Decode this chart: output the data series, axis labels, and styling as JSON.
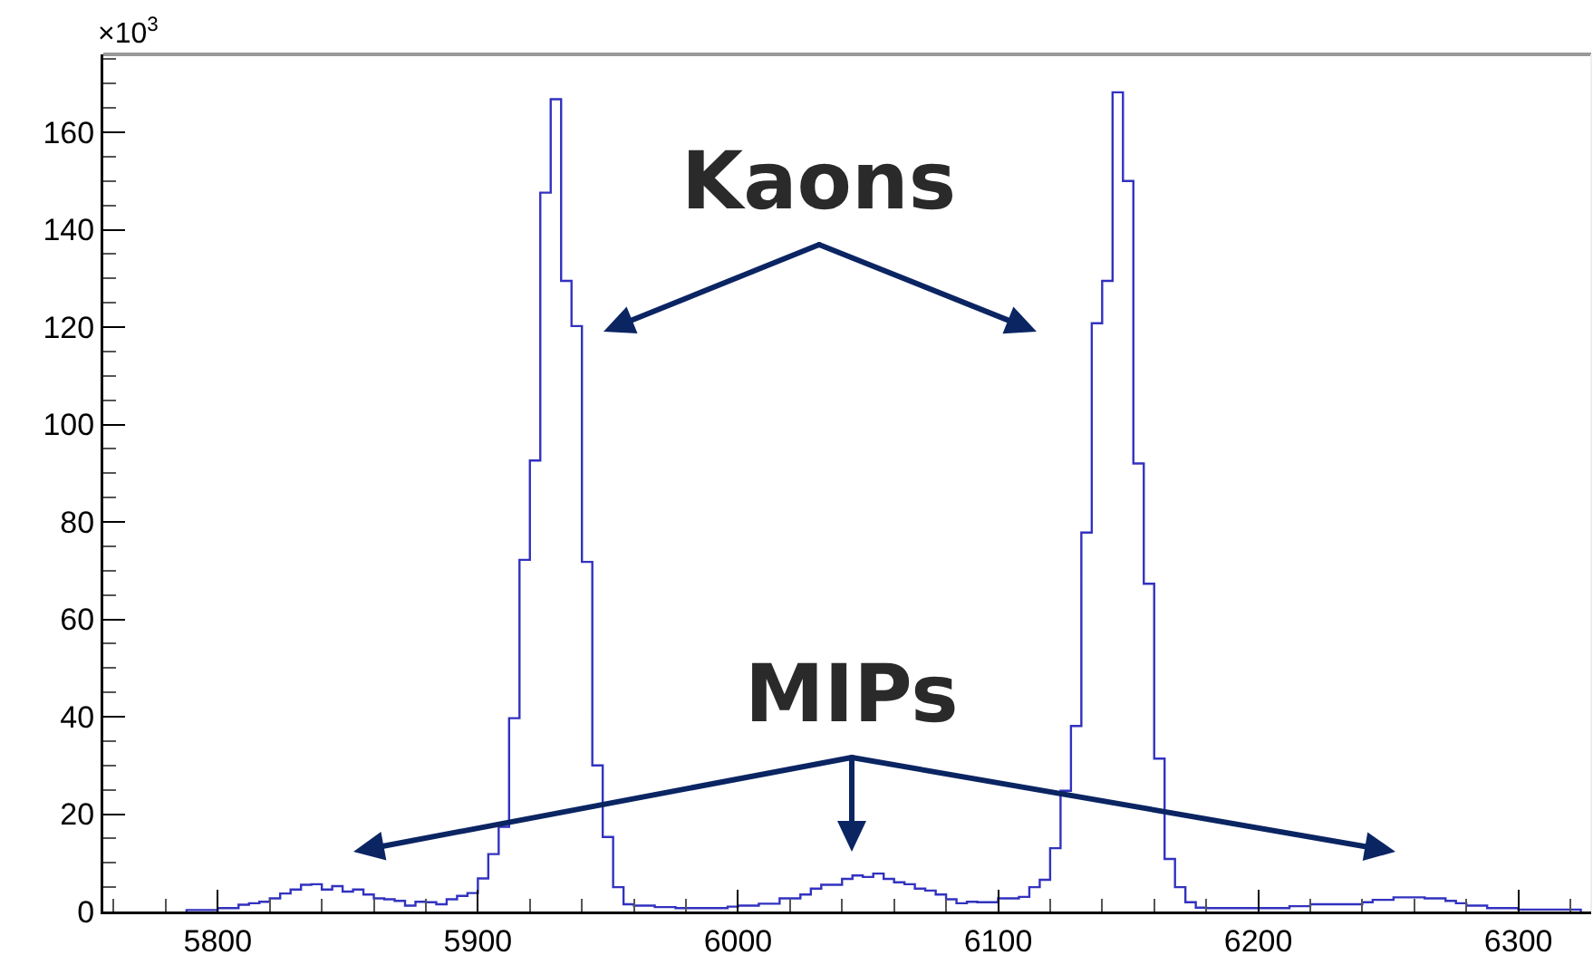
{
  "chart_data": {
    "type": "histogram",
    "color": "#3232c0",
    "bins": [
      5788,
      5792,
      5796,
      5800,
      5804,
      5808,
      5812,
      5816,
      5820,
      5824,
      5828,
      5832,
      5836,
      5840,
      5844,
      5848,
      5852,
      5856,
      5860,
      5864,
      5868,
      5872,
      5876,
      5880,
      5884,
      5888,
      5892,
      5896,
      5900,
      5904,
      5908,
      5912,
      5916,
      5920,
      5924,
      5928,
      5932,
      5936,
      5940,
      5944,
      5948,
      5952,
      5956,
      5960,
      5964,
      5968,
      5972,
      5976,
      5980,
      5984,
      5988,
      5992,
      5996,
      6000,
      6004,
      6008,
      6012,
      6016,
      6020,
      6024,
      6028,
      6032,
      6036,
      6040,
      6044,
      6048,
      6052,
      6056,
      6060,
      6064,
      6068,
      6072,
      6076,
      6080,
      6084,
      6088,
      6092,
      6096,
      6100,
      6104,
      6108,
      6112,
      6116,
      6120,
      6124,
      6128,
      6132,
      6136,
      6140,
      6144,
      6148,
      6152,
      6156,
      6160,
      6164,
      6168,
      6172,
      6176,
      6180,
      6184,
      6188,
      6192,
      6196,
      6200,
      6204,
      6208,
      6212,
      6216,
      6220,
      6224,
      6228,
      6232,
      6236,
      6240,
      6244,
      6248,
      6252,
      6256,
      6260,
      6264,
      6268,
      6272,
      6276,
      6280,
      6284,
      6288,
      6292,
      6296,
      6300,
      6304,
      6308,
      6312,
      6316,
      6320,
      6324
    ],
    "values": [
      0.3,
      0.3,
      0.3,
      0.7,
      0.7,
      1.4,
      1.7,
      2.0,
      2.7,
      3.7,
      4.5,
      5.5,
      5.6,
      4.5,
      5.2,
      4.1,
      4.5,
      3.5,
      2.7,
      2.5,
      2.2,
      1.2,
      2.0,
      1.9,
      1.5,
      2.5,
      3.2,
      3.8,
      6.8,
      11.8,
      17.4,
      39.7,
      72.2,
      92.6,
      147.6,
      166.8,
      129.5,
      120.2,
      71.8,
      30.0,
      15.3,
      5.0,
      1.5,
      1.2,
      1.2,
      0.9,
      0.9,
      0.7,
      0.7,
      0.7,
      0.7,
      0.7,
      1.0,
      1.2,
      1.2,
      1.6,
      1.6,
      2.7,
      2.7,
      3.5,
      4.7,
      5.5,
      5.5,
      6.7,
      7.4,
      7.1,
      7.8,
      6.7,
      6.0,
      5.6,
      4.7,
      4.3,
      3.5,
      2.5,
      1.7,
      2.0,
      1.9,
      1.9,
      2.7,
      2.7,
      3.0,
      5.0,
      6.5,
      13.0,
      24.8,
      38.1,
      77.8,
      120.8,
      129.5,
      168.2,
      150.0,
      92.0,
      67.3,
      31.4,
      10.8,
      5.0,
      1.9,
      0.8,
      0.7,
      0.7,
      0.7,
      0.7,
      0.7,
      0.7,
      0.7,
      0.7,
      1.1,
      1.1,
      1.5,
      1.5,
      1.5,
      1.5,
      1.5,
      1.9,
      2.4,
      2.4,
      2.9,
      2.9,
      2.9,
      2.7,
      2.7,
      2.2,
      1.7,
      1.2,
      1.2,
      0.7,
      0.7,
      0.7,
      0.4,
      0.4,
      0.4,
      0.4,
      0.4,
      0.4
    ],
    "xlim": [
      5756,
      6328
    ],
    "ylim": [
      0,
      176
    ],
    "xticks": [
      {
        "value": 5760,
        "label": null
      },
      {
        "value": 5780,
        "label": null
      },
      5800,
      {
        "value": 5820,
        "label": null
      },
      {
        "value": 5840,
        "label": null
      },
      {
        "value": 5860,
        "label": null
      },
      {
        "value": 5880,
        "label": null
      },
      5900,
      {
        "value": 5920,
        "label": null
      },
      {
        "value": 5940,
        "label": null
      },
      {
        "value": 5960,
        "label": null
      },
      {
        "value": 5980,
        "label": null
      },
      6000,
      {
        "value": 6020,
        "label": null
      },
      {
        "value": 6040,
        "label": null
      },
      {
        "value": 6060,
        "label": null
      },
      {
        "value": 6080,
        "label": null
      },
      6100,
      {
        "value": 6120,
        "label": null
      },
      {
        "value": 6140,
        "label": null
      },
      {
        "value": 6160,
        "label": null
      },
      {
        "value": 6180,
        "label": null
      },
      6200,
      {
        "value": 6220,
        "label": null
      },
      {
        "value": 6240,
        "label": null
      },
      {
        "value": 6260,
        "label": null
      },
      {
        "value": 6280,
        "label": null
      },
      6300,
      {
        "value": 6320,
        "label": null
      }
    ],
    "yticks": [
      0,
      {
        "value": 5,
        "label": null
      },
      {
        "value": 10,
        "label": null
      },
      {
        "value": 15,
        "label": null
      },
      20,
      {
        "value": 25,
        "label": null
      },
      {
        "value": 30,
        "label": null
      },
      {
        "value": 35,
        "label": null
      },
      40,
      {
        "value": 45,
        "label": null
      },
      {
        "value": 50,
        "label": null
      },
      {
        "value": 55,
        "label": null
      },
      60,
      {
        "value": 65,
        "label": null
      },
      {
        "value": 70,
        "label": null
      },
      {
        "value": 75,
        "label": null
      },
      80,
      {
        "value": 85,
        "label": null
      },
      {
        "value": 90,
        "label": null
      },
      {
        "value": 95,
        "label": null
      },
      100,
      {
        "value": 105,
        "label": null
      },
      {
        "value": 110,
        "label": null
      },
      {
        "value": 115,
        "label": null
      },
      120,
      {
        "value": 125,
        "label": null
      },
      {
        "value": 130,
        "label": null
      },
      {
        "value": 135,
        "label": null
      },
      140,
      {
        "value": 145,
        "label": null
      },
      {
        "value": 150,
        "label": null
      },
      {
        "value": 155,
        "label": null
      },
      160,
      {
        "value": 165,
        "label": null
      },
      {
        "value": 170,
        "label": null
      },
      {
        "value": 175,
        "label": null
      }
    ],
    "annotations": [
      "×10$^{3}$",
      "Kaons",
      "MIPs"
    ],
    "grid": false
  }
}
